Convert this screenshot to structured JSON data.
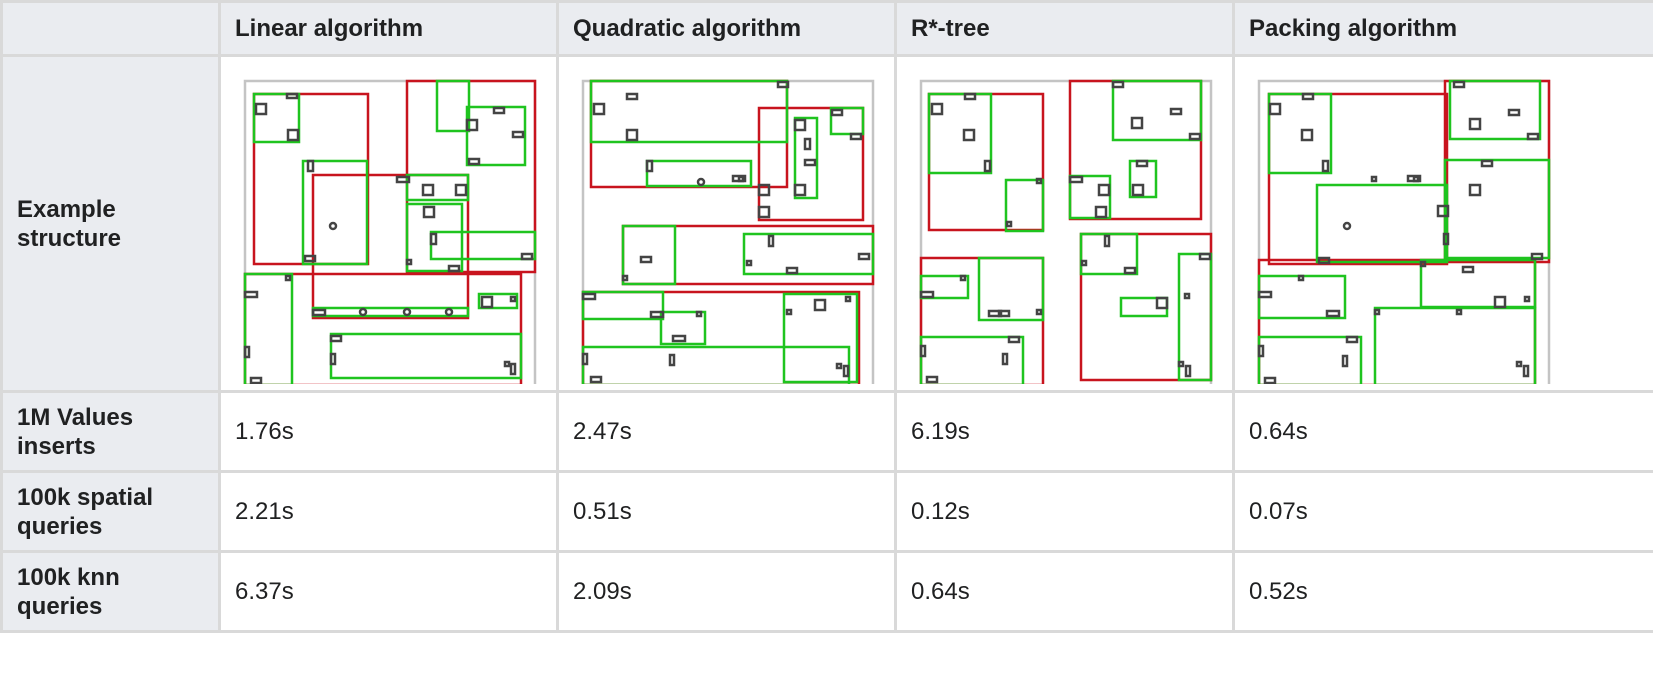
{
  "table": {
    "corner": "",
    "columns": [
      "Linear algorithm",
      "Quadratic algorithm",
      "R*-tree",
      "Packing algorithm"
    ],
    "rows": [
      {
        "label": "Example structure"
      },
      {
        "label": "1M Values inserts",
        "values": [
          "1.76s",
          "2.47s",
          "6.19s",
          "0.64s"
        ]
      },
      {
        "label": "100k spatial queries",
        "values": [
          "2.21s",
          "0.51s",
          "0.12s",
          "0.07s"
        ]
      },
      {
        "label": "100k knn queries",
        "values": [
          "6.37s",
          "2.09s",
          "0.64s",
          "0.52s"
        ]
      }
    ]
  },
  "colors": {
    "border": "#d9d9d9",
    "header_background": "#eaecf0",
    "top_level_node": "#c8141e",
    "leaf_node": "#1fc41f",
    "data_object": "#444444",
    "diagram_frame": "#c4c4c4"
  },
  "icons": [
    "rtree-diagram-linear",
    "rtree-diagram-quadratic",
    "rtree-diagram-rstar",
    "rtree-diagram-packing"
  ]
}
